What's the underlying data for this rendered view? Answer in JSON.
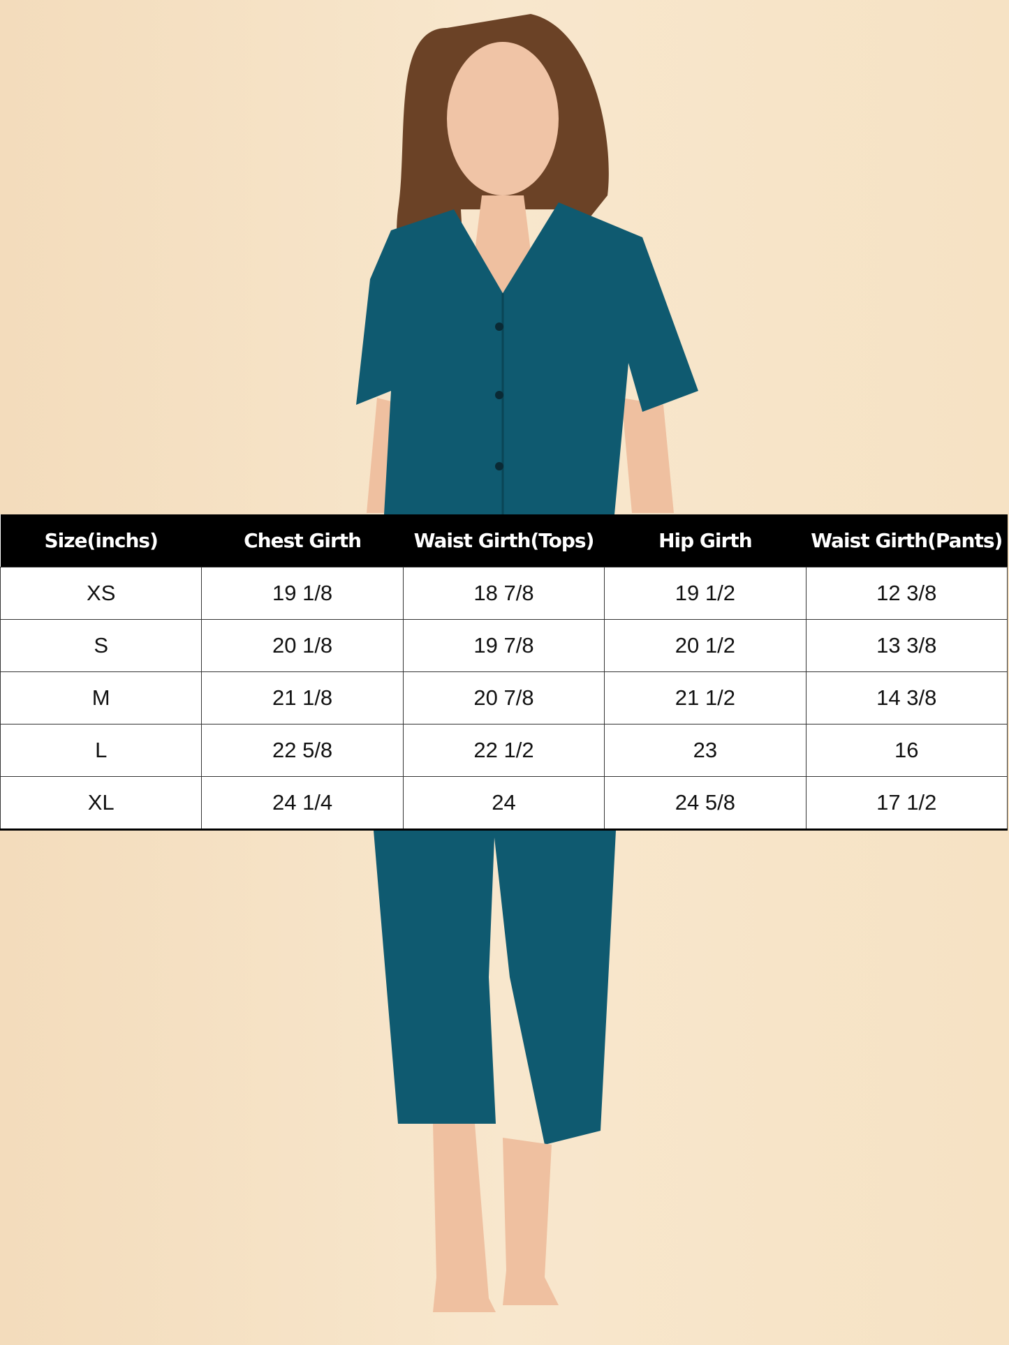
{
  "colors": {
    "background": "#f6e2c4",
    "garment": "#0f5a70",
    "header_bg": "#000000",
    "header_text": "#ffffff"
  },
  "size_chart": {
    "headers": [
      "Size(inchs)",
      "Chest Girth",
      "Waist Girth(Tops)",
      "Hip Girth",
      "Waist Girth(Pants)"
    ],
    "rows": [
      [
        "XS",
        "19 1/8",
        "18 7/8",
        "19 1/2",
        "12 3/8"
      ],
      [
        "S",
        "20 1/8",
        "19 7/8",
        "20 1/2",
        "13 3/8"
      ],
      [
        "M",
        "21 1/8",
        "20 7/8",
        "21 1/2",
        "14 3/8"
      ],
      [
        "L",
        "22 5/8",
        "22 1/2",
        "23",
        "16"
      ],
      [
        "XL",
        "24 1/4",
        "24",
        "24 5/8",
        "17 1/2"
      ]
    ]
  }
}
